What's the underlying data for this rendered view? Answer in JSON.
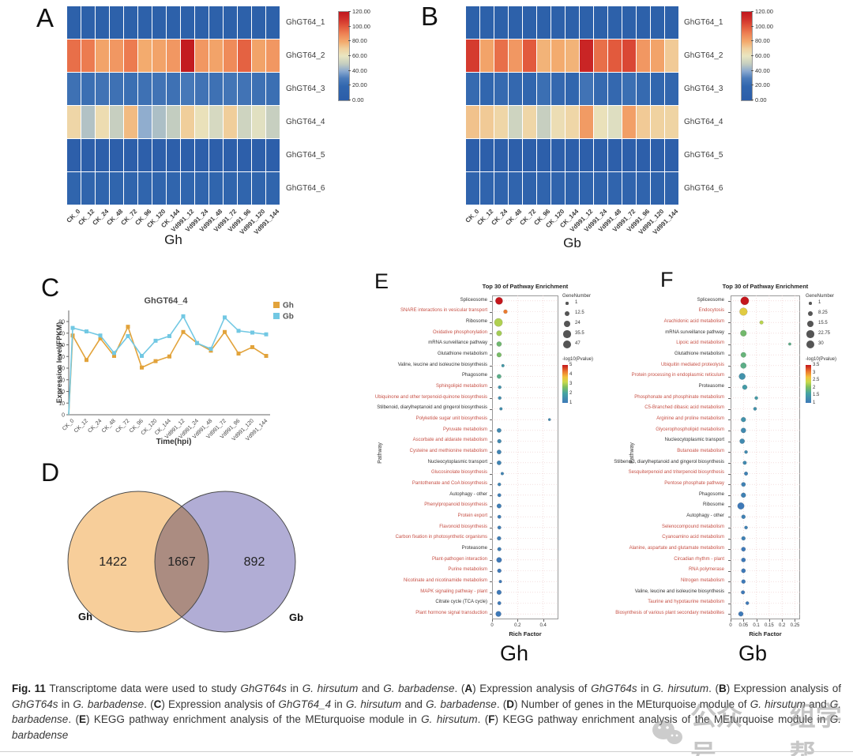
{
  "panels": {
    "a": "A",
    "b": "B",
    "c": "C",
    "d": "D",
    "e": "E",
    "f": "F"
  },
  "watermark": {
    "icon": "wechat-icon",
    "text1": "公众号",
    "text2": "组学帮"
  },
  "caption_segments": [
    {
      "t": "Fig. 11",
      "b": true
    },
    {
      "t": "  Transcriptome data were used to study "
    },
    {
      "t": "GhGT64s",
      "i": true
    },
    {
      "t": " in "
    },
    {
      "t": "G. hirsutum",
      "i": true
    },
    {
      "t": " and "
    },
    {
      "t": "G. barbadense",
      "i": true
    },
    {
      "t": ". ("
    },
    {
      "t": "A",
      "b": true
    },
    {
      "t": ") Expression analysis of "
    },
    {
      "t": "GhGT64s",
      "i": true
    },
    {
      "t": " in "
    },
    {
      "t": "G. hirsutum",
      "i": true
    },
    {
      "t": ". ("
    },
    {
      "t": "B",
      "b": true
    },
    {
      "t": ") Expression analysis of "
    },
    {
      "t": "GhGT64s",
      "i": true
    },
    {
      "t": " in "
    },
    {
      "t": "G. barbadense",
      "i": true
    },
    {
      "t": ". ("
    },
    {
      "t": "C",
      "b": true
    },
    {
      "t": ") Expression analysis of "
    },
    {
      "t": "GhGT64_4",
      "i": true
    },
    {
      "t": " in "
    },
    {
      "t": "G. hirsutum",
      "i": true
    },
    {
      "t": " and "
    },
    {
      "t": "G. barbadense",
      "i": true
    },
    {
      "t": ". ("
    },
    {
      "t": "D",
      "b": true
    },
    {
      "t": ") Number of genes in the MEturquoise module of "
    },
    {
      "t": "G. hirsutum",
      "i": true
    },
    {
      "t": " and "
    },
    {
      "t": "G. barbadense",
      "i": true
    },
    {
      "t": ". ("
    },
    {
      "t": "E",
      "b": true
    },
    {
      "t": ") KEGG pathway enrichment analysis of the MEturquoise module in "
    },
    {
      "t": "G. hirsutum",
      "i": true
    },
    {
      "t": ". ("
    },
    {
      "t": "F",
      "b": true
    },
    {
      "t": ") KEGG pathway enrichment analysis of the MEturquoise module in "
    },
    {
      "t": "G. barbadense",
      "i": true
    }
  ],
  "chart_data": [
    {
      "id": "A",
      "type": "heatmap",
      "group_label": "Gh",
      "columns": [
        "CK_0",
        "CK_12",
        "CK_24",
        "CK_48",
        "CK_72",
        "CK_96",
        "CK_120",
        "CK_144",
        "Vd991_12",
        "Vd991_24",
        "Vd991_48",
        "Vd991_72",
        "Vd991_96",
        "Vd991_120",
        "Vd991_144"
      ],
      "rows": [
        "GhGT64_1",
        "GhGT64_2",
        "GhGT64_3",
        "GhGT64_4",
        "GhGT64_5",
        "GhGT64_6"
      ],
      "values": [
        [
          8,
          8,
          8,
          8,
          8,
          8,
          8,
          8,
          8,
          8,
          8,
          8,
          8,
          8,
          8
        ],
        [
          95,
          92,
          82,
          85,
          92,
          80,
          82,
          85,
          118,
          85,
          82,
          88,
          98,
          82,
          85
        ],
        [
          25,
          24,
          26,
          25,
          24,
          25,
          26,
          25,
          28,
          26,
          25,
          27,
          26,
          25,
          24
        ],
        [
          68,
          47,
          65,
          51,
          76,
          41,
          46,
          50,
          71,
          62,
          55,
          71,
          53,
          58,
          51
        ],
        [
          5,
          5,
          5,
          5,
          5,
          5,
          5,
          5,
          5,
          5,
          5,
          5,
          5,
          5,
          5
        ],
        [
          18,
          17,
          18,
          18,
          17,
          18,
          18,
          17,
          19,
          18,
          18,
          18,
          18,
          17,
          17
        ]
      ],
      "scale": {
        "min": 0,
        "max": 120,
        "ticks": [
          "120.00",
          "100.00",
          "80.00",
          "60.00",
          "40.00",
          "20.00",
          "0.00"
        ]
      }
    },
    {
      "id": "B",
      "type": "heatmap",
      "group_label": "Gb",
      "columns": [
        "CK_0",
        "CK_12",
        "CK_24",
        "CK_48",
        "CK_72",
        "CK_96",
        "CK_120",
        "CK_144",
        "Vd991_12",
        "Vd991_24",
        "Vd991_48",
        "Vd991_72",
        "Vd991_96",
        "Vd991_120",
        "Vd991_144"
      ],
      "rows": [
        "GhGT64_1",
        "GhGT64_2",
        "GhGT64_3",
        "GhGT64_4",
        "GhGT64_5",
        "GhGT64_6"
      ],
      "values": [
        [
          8,
          8,
          8,
          8,
          8,
          8,
          8,
          8,
          8,
          8,
          8,
          8,
          8,
          8,
          8
        ],
        [
          108,
          82,
          95,
          85,
          100,
          78,
          80,
          78,
          115,
          95,
          100,
          105,
          85,
          82,
          72
        ],
        [
          22,
          20,
          22,
          21,
          20,
          24,
          21,
          20,
          26,
          22,
          21,
          24,
          22,
          20,
          19
        ],
        [
          74,
          72,
          68,
          53,
          68,
          51,
          64,
          68,
          84,
          62,
          57,
          83,
          72,
          70,
          69
        ],
        [
          5,
          5,
          5,
          5,
          5,
          5,
          5,
          5,
          5,
          5,
          5,
          5,
          5,
          5,
          5
        ],
        [
          15,
          15,
          15,
          15,
          14,
          15,
          15,
          14,
          16,
          15,
          15,
          15,
          15,
          14,
          14
        ]
      ],
      "scale": {
        "min": 0,
        "max": 120,
        "ticks": [
          "120.00",
          "100.00",
          "80.00",
          "60.00",
          "40.00",
          "20.00",
          "0.00"
        ]
      }
    },
    {
      "id": "C",
      "type": "line",
      "title": "GhGT64_4",
      "xlabel": "Time(hpi)",
      "ylabel": "Expression level(FPKM)",
      "x": [
        "CK_0",
        "CK_12",
        "CK_24",
        "CK_48",
        "CK_72",
        "CK_96",
        "CK_120",
        "CK_144",
        "Vd991_12",
        "Vd991_24",
        "Vd991_48",
        "Vd991_72",
        "Vd991_96",
        "Vd991_120",
        "Vd991_144"
      ],
      "yticks": [
        0,
        10,
        20,
        30,
        40,
        50,
        60,
        70,
        80
      ],
      "ylim": [
        0,
        88
      ],
      "starts_at_zero": true,
      "series": [
        {
          "name": "Gh",
          "color": "#E2A33B",
          "values": [
            68,
            47,
            65.5,
            50.5,
            75.5,
            40.5,
            46,
            50,
            71,
            61.5,
            55,
            71,
            52.5,
            58,
            50.5
          ]
        },
        {
          "name": "Gb",
          "color": "#72C8E3",
          "values": [
            74.5,
            71.5,
            68,
            53,
            67.5,
            50.5,
            63.5,
            67.5,
            84.5,
            61.5,
            56.5,
            83.5,
            72,
            70.5,
            69
          ]
        }
      ]
    },
    {
      "id": "D",
      "type": "venn",
      "left": {
        "label": "Gh",
        "value": "1422",
        "color": "#F6C98F"
      },
      "right": {
        "label": "Gb",
        "value": "892",
        "color": "#A8A4D0"
      },
      "overlap": "1667"
    },
    {
      "id": "E",
      "type": "dotplot",
      "title": "Top 30 of Pathway Enrichment",
      "xlabel": "Rich Factor",
      "ylabel": "Pathway",
      "group_label": "Gh",
      "xticks": [
        0,
        0.2,
        0.4
      ],
      "xlim": [
        0,
        0.52
      ],
      "size_legend": {
        "title": "GeneNumber",
        "values": [
          "1",
          "12.5",
          "24",
          "35.5",
          "47"
        ],
        "max": 47
      },
      "color_legend": {
        "title": "-log10(Pvalue)",
        "ticks": [
          "5",
          "4",
          "3",
          "2",
          "1"
        ],
        "min": 1,
        "max": 5
      },
      "rows": [
        {
          "label": "Spliceosome",
          "red": false,
          "x": 0.055,
          "n": 35,
          "p": 5.0
        },
        {
          "label": "SNARE interactions in vesicular transport",
          "red": true,
          "x": 0.105,
          "n": 6,
          "p": 4.4
        },
        {
          "label": "Ribosome",
          "red": false,
          "x": 0.05,
          "n": 47,
          "p": 3.0
        },
        {
          "label": "Oxidative phosphorylation",
          "red": true,
          "x": 0.055,
          "n": 15,
          "p": 2.9
        },
        {
          "label": "mRNA surveillance pathway",
          "red": false,
          "x": 0.055,
          "n": 12,
          "p": 2.4
        },
        {
          "label": "Glutathione metabolism",
          "red": false,
          "x": 0.055,
          "n": 10,
          "p": 2.5
        },
        {
          "label": "Valine, leucine and isoleucine biosynthesis",
          "red": false,
          "x": 0.085,
          "n": 2,
          "p": 1.6
        },
        {
          "label": "Phagosome",
          "red": false,
          "x": 0.055,
          "n": 8,
          "p": 2.1
        },
        {
          "label": "Sphingolipid metabolism",
          "red": true,
          "x": 0.06,
          "n": 3,
          "p": 1.5
        },
        {
          "label": "Ubiquinone and other terpenoid-quinone biosynthesis",
          "red": true,
          "x": 0.06,
          "n": 3,
          "p": 1.4
        },
        {
          "label": "Stilbenoid, diarylheptanoid and gingerol biosynthesis",
          "red": false,
          "x": 0.07,
          "n": 2,
          "p": 1.4
        },
        {
          "label": "Polyketide sugar unit biosynthesis",
          "red": true,
          "x": 0.45,
          "n": 1,
          "p": 1.3
        },
        {
          "label": "Pyruvate metabolism",
          "red": true,
          "x": 0.055,
          "n": 8,
          "p": 1.3
        },
        {
          "label": "Ascorbate and aldarate metabolism",
          "red": true,
          "x": 0.057,
          "n": 6,
          "p": 1.3
        },
        {
          "label": "Cysteine and methionine metabolism",
          "red": true,
          "x": 0.055,
          "n": 8,
          "p": 1.2
        },
        {
          "label": "Nucleocytoplasmic transport",
          "red": false,
          "x": 0.055,
          "n": 8,
          "p": 1.2
        },
        {
          "label": "Glucosinolate biosynthesis",
          "red": true,
          "x": 0.08,
          "n": 2,
          "p": 1.2
        },
        {
          "label": "Pantothenate and CoA biosynthesis",
          "red": true,
          "x": 0.057,
          "n": 3,
          "p": 1.2
        },
        {
          "label": "Autophagy - other",
          "red": false,
          "x": 0.057,
          "n": 4,
          "p": 1.1
        },
        {
          "label": "Phenylpropanoid biosynthesis",
          "red": true,
          "x": 0.055,
          "n": 9,
          "p": 1.1
        },
        {
          "label": "Protein export",
          "red": true,
          "x": 0.057,
          "n": 4,
          "p": 1.1
        },
        {
          "label": "Flavonoid biosynthesis",
          "red": true,
          "x": 0.057,
          "n": 4,
          "p": 1.1
        },
        {
          "label": "Carbon fixation in photosynthetic organisms",
          "red": true,
          "x": 0.055,
          "n": 6,
          "p": 1.1
        },
        {
          "label": "Proteasome",
          "red": false,
          "x": 0.057,
          "n": 5,
          "p": 1.1
        },
        {
          "label": "Plant-pathogen interaction",
          "red": true,
          "x": 0.055,
          "n": 14,
          "p": 1.0
        },
        {
          "label": "Purine metabolism",
          "red": true,
          "x": 0.057,
          "n": 6,
          "p": 1.0
        },
        {
          "label": "Nicotinate and nicotinamide metabolism",
          "red": true,
          "x": 0.065,
          "n": 2,
          "p": 1.0
        },
        {
          "label": "MAPK signaling pathway - plant",
          "red": true,
          "x": 0.055,
          "n": 10,
          "p": 1.0
        },
        {
          "label": "Citrate cycle (TCA cycle)",
          "red": false,
          "x": 0.057,
          "n": 4,
          "p": 1.0
        },
        {
          "label": "Plant hormone signal transduction",
          "red": true,
          "x": 0.05,
          "n": 16,
          "p": 1.0
        }
      ]
    },
    {
      "id": "F",
      "type": "dotplot",
      "title": "Top 30 of Pathway Enrichment",
      "xlabel": "Rich Factor",
      "ylabel": "Pathway",
      "group_label": "Gb",
      "xticks": [
        0,
        0.05,
        0.1,
        0.15,
        0.2,
        0.25
      ],
      "xlim": [
        0,
        0.27
      ],
      "size_legend": {
        "title": "GeneNumber",
        "values": [
          "1",
          "8.25",
          "15.5",
          "22.75",
          "30"
        ],
        "max": 30
      },
      "color_legend": {
        "title": "-log10(Pvalue)",
        "ticks": [
          "3.5",
          "3",
          "2.5",
          "2",
          "1.5",
          "1"
        ],
        "min": 1,
        "max": 3.5
      },
      "rows": [
        {
          "label": "Spliceosome",
          "red": false,
          "x": 0.055,
          "n": 30,
          "p": 3.5
        },
        {
          "label": "Endocytosis",
          "red": true,
          "x": 0.05,
          "n": 26,
          "p": 2.6
        },
        {
          "label": "Arachidonic acid metabolism",
          "red": true,
          "x": 0.12,
          "n": 3,
          "p": 2.3
        },
        {
          "label": "mRNA surveillance pathway",
          "red": false,
          "x": 0.05,
          "n": 14,
          "p": 1.9
        },
        {
          "label": "Lipoic acid metabolism",
          "red": true,
          "x": 0.23,
          "n": 1,
          "p": 1.7
        },
        {
          "label": "Glutathione metabolism",
          "red": false,
          "x": 0.05,
          "n": 9,
          "p": 1.8
        },
        {
          "label": "Ubiquitin mediated proteolysis",
          "red": true,
          "x": 0.05,
          "n": 12,
          "p": 1.7
        },
        {
          "label": "Protein processing in endoplasmic reticulum",
          "red": true,
          "x": 0.045,
          "n": 16,
          "p": 1.3
        },
        {
          "label": "Proteasome",
          "red": false,
          "x": 0.055,
          "n": 7,
          "p": 1.4
        },
        {
          "label": "Phosphonate and phosphinate metabolism",
          "red": true,
          "x": 0.1,
          "n": 2,
          "p": 1.4
        },
        {
          "label": "C5-Branched dibasic acid metabolism",
          "red": true,
          "x": 0.095,
          "n": 2,
          "p": 1.3
        },
        {
          "label": "Arginine and proline metabolism",
          "red": true,
          "x": 0.05,
          "n": 7,
          "p": 1.3
        },
        {
          "label": "Glycerophospholipid metabolism",
          "red": true,
          "x": 0.05,
          "n": 8,
          "p": 1.2
        },
        {
          "label": "Nucleocytoplasmic transport",
          "red": false,
          "x": 0.045,
          "n": 8,
          "p": 1.2
        },
        {
          "label": "Butanoate metabolism",
          "red": true,
          "x": 0.06,
          "n": 2,
          "p": 1.2
        },
        {
          "label": "Stilbenoid, diarylheptanoid and gingerol biosynthesis",
          "red": false,
          "x": 0.055,
          "n": 3,
          "p": 1.2
        },
        {
          "label": "Sesquiterpenoid and triterpenoid biosynthesis",
          "red": true,
          "x": 0.06,
          "n": 3,
          "p": 1.1
        },
        {
          "label": "Pentose phosphate pathway",
          "red": true,
          "x": 0.05,
          "n": 5,
          "p": 1.1
        },
        {
          "label": "Phagosome",
          "red": false,
          "x": 0.05,
          "n": 7,
          "p": 1.1
        },
        {
          "label": "Ribosome",
          "red": false,
          "x": 0.04,
          "n": 18,
          "p": 1.0
        },
        {
          "label": "Autophagy - other",
          "red": false,
          "x": 0.05,
          "n": 4,
          "p": 1.1
        },
        {
          "label": "Selenocompound metabolism",
          "red": true,
          "x": 0.06,
          "n": 2,
          "p": 1.1
        },
        {
          "label": "Cyanoamino acid metabolism",
          "red": true,
          "x": 0.05,
          "n": 4,
          "p": 1.1
        },
        {
          "label": "Alanine, aspartate and glutamate metabolism",
          "red": true,
          "x": 0.05,
          "n": 5,
          "p": 1.0
        },
        {
          "label": "Circadian rhythm - plant",
          "red": true,
          "x": 0.05,
          "n": 5,
          "p": 1.0
        },
        {
          "label": "RNA polymerase",
          "red": true,
          "x": 0.05,
          "n": 5,
          "p": 1.0
        },
        {
          "label": "Nitrogen metabolism",
          "red": true,
          "x": 0.05,
          "n": 4,
          "p": 1.0
        },
        {
          "label": "Valine, leucine and isoleucine biosynthesis",
          "red": false,
          "x": 0.048,
          "n": 3,
          "p": 1.0
        },
        {
          "label": "Taurine and hypotaurine metabolism",
          "red": true,
          "x": 0.065,
          "n": 2,
          "p": 1.0
        },
        {
          "label": "Biosynthesis of various plant secondary metabolites",
          "red": true,
          "x": 0.04,
          "n": 7,
          "p": 1.0
        }
      ]
    }
  ]
}
